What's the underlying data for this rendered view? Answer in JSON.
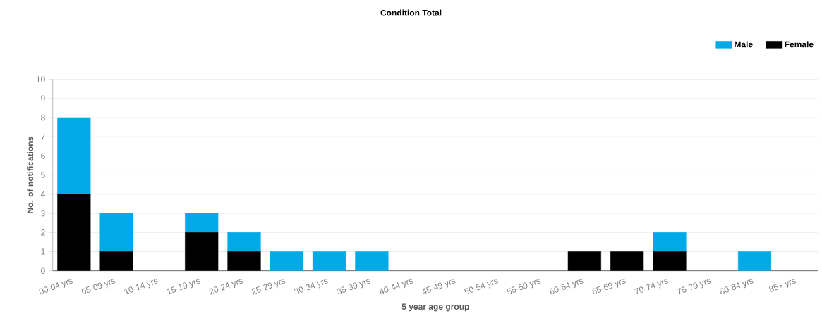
{
  "chart_data": {
    "type": "bar",
    "title": "Condition Total",
    "xlabel": "5 year age group",
    "ylabel": "No. of notifications",
    "categories": [
      "00-04 yrs",
      "05-09 yrs",
      "10-14 yrs",
      "15-19 yrs",
      "20-24 yrs",
      "25-29 yrs",
      "30-34 yrs",
      "35-39 yrs",
      "40-44 yrs",
      "45-49 yrs",
      "50-54 yrs",
      "55-59 yrs",
      "60-64 yrs",
      "65-69 yrs",
      "70-74 yrs",
      "75-79 yrs",
      "80-84 yrs",
      "85+ yrs"
    ],
    "series": [
      {
        "name": "Female",
        "color": "#000000",
        "values": [
          4,
          1,
          0,
          2,
          1,
          0,
          0,
          0,
          0,
          0,
          0,
          0,
          1,
          1,
          1,
          0,
          0,
          0
        ]
      },
      {
        "name": "Male",
        "color": "#00aae6",
        "values": [
          4,
          2,
          0,
          1,
          1,
          1,
          1,
          1,
          0,
          0,
          0,
          0,
          0,
          0,
          1,
          0,
          1,
          0
        ]
      }
    ],
    "stacked": true,
    "ylim": [
      0,
      10
    ],
    "yticks": [
      0,
      1,
      2,
      3,
      4,
      5,
      6,
      7,
      8,
      9,
      10
    ],
    "grid": "y",
    "legend": "top right"
  }
}
